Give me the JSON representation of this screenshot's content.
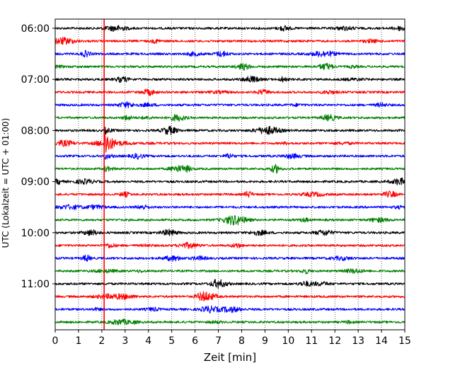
{
  "chart_data": {
    "type": "line",
    "title": "",
    "xlabel": "Zeit  [min]",
    "ylabel": "UTC (Lokalzeit = UTC + 01:00)",
    "xlim": [
      0,
      15
    ],
    "x_ticks": [
      "0",
      "1",
      "2",
      "3",
      "4",
      "5",
      "6",
      "7",
      "8",
      "9",
      "10",
      "11",
      "12",
      "13",
      "14",
      "15"
    ],
    "y_tick_labels": [
      "06:00",
      "07:00",
      "08:00",
      "09:00",
      "10:00",
      "11:00"
    ],
    "grid": "vertical-dotted",
    "trace_interval_minutes": 15,
    "trace_start": "06:00",
    "trace_count": 24,
    "trace_colors": [
      "#000000",
      "#ff0000",
      "#0000ff",
      "#008000"
    ],
    "event_marker": {
      "x": 2.1,
      "color": "#ff0000"
    },
    "event_trace": "08:15"
  }
}
